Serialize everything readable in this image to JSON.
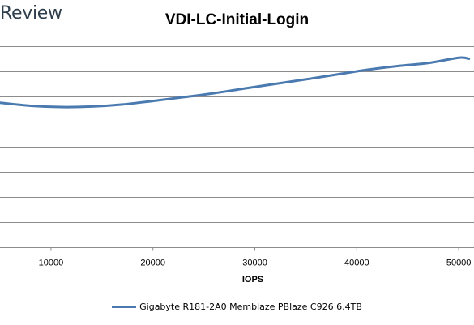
{
  "brand": "Review",
  "chart_data": {
    "type": "line",
    "title": "VDI-LC-Initial-Login",
    "xlabel": "IOPS",
    "ylabel": "",
    "x_ticks": [
      10000,
      20000,
      30000,
      40000,
      50000
    ],
    "x_tick_labels": [
      "10000",
      "20000",
      "30000",
      "40000",
      "50000"
    ],
    "xlim": [
      5000,
      51500
    ],
    "ylim": [
      0,
      8
    ],
    "y_gridlines": [
      0,
      1,
      2,
      3,
      4,
      5,
      6,
      7,
      8
    ],
    "grid": true,
    "legend_position": "bottom",
    "series": [
      {
        "name": "Gigabyte R181-2A0 Memblaze PBlaze C926 6.4TB",
        "color": "#4a7ab0",
        "x": [
          5000,
          8000,
          11000,
          14000,
          17000,
          20000,
          23000,
          26000,
          29000,
          32000,
          35000,
          38000,
          41000,
          44000,
          47000,
          50000,
          51000
        ],
        "y": [
          5.75,
          5.63,
          5.58,
          5.6,
          5.68,
          5.82,
          5.97,
          6.13,
          6.32,
          6.5,
          6.68,
          6.87,
          7.06,
          7.21,
          7.33,
          7.54,
          7.5
        ]
      }
    ]
  }
}
